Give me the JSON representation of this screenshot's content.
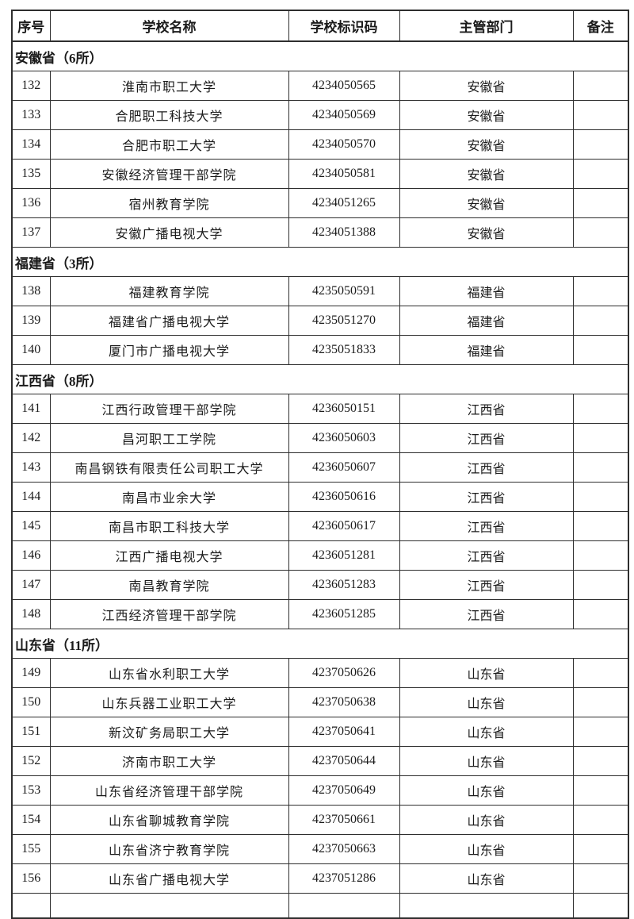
{
  "document": {
    "background": "#ffffff",
    "border_color": "#2e2e2e",
    "text_color": "#1b1b1b"
  },
  "table": {
    "headers": [
      "序号",
      "学校名称",
      "学校标识码",
      "主管部门",
      "备注"
    ],
    "sections": [
      {
        "title": "安徽省（6所）",
        "rows": [
          [
            "132",
            "淮南市职工大学",
            "4234050565",
            "安徽省",
            ""
          ],
          [
            "133",
            "合肥职工科技大学",
            "4234050569",
            "安徽省",
            ""
          ],
          [
            "134",
            "合肥市职工大学",
            "4234050570",
            "安徽省",
            ""
          ],
          [
            "135",
            "安徽经济管理干部学院",
            "4234050581",
            "安徽省",
            ""
          ],
          [
            "136",
            "宿州教育学院",
            "4234051265",
            "安徽省",
            ""
          ],
          [
            "137",
            "安徽广播电视大学",
            "4234051388",
            "安徽省",
            ""
          ]
        ]
      },
      {
        "title": "福建省（3所）",
        "rows": [
          [
            "138",
            "福建教育学院",
            "4235050591",
            "福建省",
            ""
          ],
          [
            "139",
            "福建省广播电视大学",
            "4235051270",
            "福建省",
            ""
          ],
          [
            "140",
            "厦门市广播电视大学",
            "4235051833",
            "福建省",
            ""
          ]
        ]
      },
      {
        "title": "江西省（8所）",
        "rows": [
          [
            "141",
            "江西行政管理干部学院",
            "4236050151",
            "江西省",
            ""
          ],
          [
            "142",
            "昌河职工工学院",
            "4236050603",
            "江西省",
            ""
          ],
          [
            "143",
            "南昌钢铁有限责任公司职工大学",
            "4236050607",
            "江西省",
            ""
          ],
          [
            "144",
            "南昌市业余大学",
            "4236050616",
            "江西省",
            ""
          ],
          [
            "145",
            "南昌市职工科技大学",
            "4236050617",
            "江西省",
            ""
          ],
          [
            "146",
            "江西广播电视大学",
            "4236051281",
            "江西省",
            ""
          ],
          [
            "147",
            "南昌教育学院",
            "4236051283",
            "江西省",
            ""
          ],
          [
            "148",
            "江西经济管理干部学院",
            "4236051285",
            "江西省",
            ""
          ]
        ]
      },
      {
        "title": "山东省（11所）",
        "rows": [
          [
            "149",
            "山东省水利职工大学",
            "4237050626",
            "山东省",
            ""
          ],
          [
            "150",
            "山东兵器工业职工大学",
            "4237050638",
            "山东省",
            ""
          ],
          [
            "151",
            "新汶矿务局职工大学",
            "4237050641",
            "山东省",
            ""
          ],
          [
            "152",
            "济南市职工大学",
            "4237050644",
            "山东省",
            ""
          ],
          [
            "153",
            "山东省经济管理干部学院",
            "4237050649",
            "山东省",
            ""
          ],
          [
            "154",
            "山东省聊城教育学院",
            "4237050661",
            "山东省",
            ""
          ],
          [
            "155",
            "山东省济宁教育学院",
            "4237050663",
            "山东省",
            ""
          ],
          [
            "156",
            "山东省广播电视大学",
            "4237051286",
            "山东省",
            ""
          ]
        ]
      }
    ]
  }
}
